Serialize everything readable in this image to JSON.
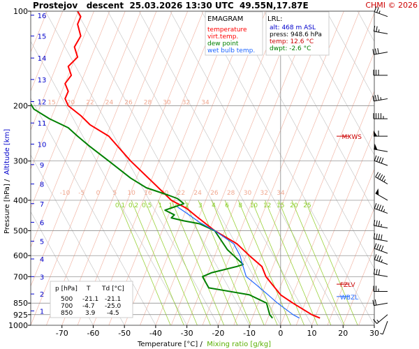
{
  "header": {
    "title": "Prostejov   descent  25.03.2026 13:30 UTC  49.55N,17.87E",
    "brand": "CHMI © 2026"
  },
  "legend": {
    "title": "EMAGRAM",
    "items": [
      {
        "label": "temperature",
        "color": "#ff0000"
      },
      {
        "label": "virt.temp.",
        "color": "#ff0000"
      },
      {
        "label": "dew point",
        "color": "#008000"
      },
      {
        "label": "wet bulb temp.",
        "color": "#1e66ff"
      }
    ]
  },
  "lrl": {
    "title": "LRL:",
    "alt": "alt: 468 m ASL",
    "press": "press: 948.6 hPa",
    "temp": "temp: 12.6 °C",
    "dwpt": "dwpt: -2.6 °C"
  },
  "table": {
    "headers": [
      "p [hPa]",
      "T",
      "Td [°C]"
    ],
    "rows": [
      [
        "500",
        "-21.1",
        "-21.1"
      ],
      [
        "700",
        "-4.7",
        "-25.0"
      ],
      [
        "850",
        "3.9",
        "-4.5"
      ]
    ]
  },
  "levels": {
    "mxws": "MXWS",
    "fzlv": "FZLV",
    "wbzl": "WBZL",
    "mxws_p": 250,
    "fzlv_p": 740,
    "wbzl_p": 810
  },
  "colors": {
    "temperature": "#ff0000",
    "dew_point": "#008000",
    "wet_bulb": "#1e66ff",
    "isotherm": "#f2b8a8",
    "dry_adiabat": "#c0c0c0",
    "mixing_ratio": "#9bd23c",
    "grid": "#808080",
    "altitude_label": "#0000cc",
    "isotherm_label": "#f0a890",
    "mixing_label": "#8ccf2a"
  },
  "chart_data": {
    "type": "line",
    "xlabel": "Temperature [°C]",
    "xlabel_sep": " /  ",
    "xlabel2": "Mixing ratio [g/kg]",
    "ylabel": "Pressure [hPa]",
    "ylabel_sep": " /  ",
    "ylabel2": "Altitude [km]",
    "x_scale": "linear",
    "y_scale": "log",
    "xlim": [
      -80,
      30
    ],
    "ylim": [
      1000,
      100
    ],
    "x_ticks": [
      -70,
      -60,
      -50,
      -40,
      -30,
      -20,
      -10,
      0,
      10,
      20,
      30
    ],
    "y_ticks": [
      100,
      200,
      300,
      400,
      500,
      600,
      700,
      850,
      925,
      1000
    ],
    "altitude_ticks": [
      {
        "km": "1",
        "p": 900
      },
      {
        "km": "2",
        "p": 795
      },
      {
        "km": "3",
        "p": 700
      },
      {
        "km": "4",
        "p": 615
      },
      {
        "km": "5",
        "p": 540
      },
      {
        "km": "6",
        "p": 470
      },
      {
        "km": "7",
        "p": 410
      },
      {
        "km": "8",
        "p": 355
      },
      {
        "km": "9",
        "p": 308
      },
      {
        "km": "10",
        "p": 265
      },
      {
        "km": "11",
        "p": 227
      },
      {
        "km": "12",
        "p": 194
      },
      {
        "km": "13",
        "p": 165
      },
      {
        "km": "14",
        "p": 141
      },
      {
        "km": "15",
        "p": 120
      },
      {
        "km": "16",
        "p": 103
      }
    ],
    "isotherm_labels_upper": {
      "p": 195,
      "values": [
        "15",
        "20",
        "22",
        "24",
        "26",
        "28",
        "30",
        "32",
        "34"
      ]
    },
    "isotherm_labels_lower": {
      "p": 378,
      "values": [
        "-10",
        "-5",
        "0",
        "5",
        "10",
        "16",
        "20",
        "22",
        "24",
        "26",
        "28",
        "30",
        "32",
        "34"
      ]
    },
    "mixing_ratio_labels": {
      "p": 415,
      "values": [
        "0.1",
        "0.2",
        "0.5",
        "1",
        "1.4",
        "2",
        "3",
        "4",
        "6",
        "8",
        "10",
        "12",
        "15",
        "20",
        "25"
      ]
    },
    "mixing_ratio_lines": [
      0.1,
      0.2,
      0.5,
      1,
      1.4,
      2,
      3,
      4,
      6,
      8,
      10,
      12,
      15,
      20,
      25
    ],
    "series": [
      {
        "name": "temperature",
        "color": "#ff0000",
        "points": [
          [
            12.6,
            948.6
          ],
          [
            10,
            925
          ],
          [
            3.9,
            850
          ],
          [
            0,
            800
          ],
          [
            -4.7,
            700
          ],
          [
            -6,
            650
          ],
          [
            -10,
            600
          ],
          [
            -14,
            550
          ],
          [
            -21.1,
            500
          ],
          [
            -27,
            450
          ],
          [
            -30,
            425
          ],
          [
            -35,
            400
          ],
          [
            -41,
            350
          ],
          [
            -48,
            300
          ],
          [
            -55,
            250
          ],
          [
            -61,
            230
          ],
          [
            -64,
            215
          ],
          [
            -68,
            200
          ],
          [
            -69,
            190
          ],
          [
            -68,
            180
          ],
          [
            -69,
            170
          ],
          [
            -67,
            160
          ],
          [
            -68,
            150
          ],
          [
            -65,
            140
          ],
          [
            -66,
            130
          ],
          [
            -64,
            120
          ],
          [
            -65,
            110
          ],
          [
            -64,
            104
          ],
          [
            -65,
            100
          ]
        ]
      },
      {
        "name": "dew point",
        "color": "#008000",
        "points": [
          [
            -2.6,
            948.6
          ],
          [
            -3.5,
            925
          ],
          [
            -4.5,
            850
          ],
          [
            -10,
            800
          ],
          [
            -18,
            775
          ],
          [
            -23,
            760
          ],
          [
            -25.0,
            700
          ],
          [
            -22,
            680
          ],
          [
            -14,
            650
          ],
          [
            -12,
            640
          ],
          [
            -15,
            600
          ],
          [
            -17,
            575
          ],
          [
            -21.1,
            500
          ],
          [
            -26,
            475
          ],
          [
            -31,
            465
          ],
          [
            -35,
            455
          ],
          [
            -34,
            445
          ],
          [
            -37,
            430
          ],
          [
            -34,
            420
          ],
          [
            -31,
            410
          ],
          [
            -33,
            395
          ],
          [
            -36,
            385
          ],
          [
            -43,
            365
          ],
          [
            -48,
            340
          ],
          [
            -55,
            300
          ],
          [
            -61,
            270
          ],
          [
            -65,
            250
          ],
          [
            -68,
            235
          ],
          [
            -74,
            220
          ],
          [
            -79,
            205
          ],
          [
            -81,
            190
          ]
        ]
      },
      {
        "name": "wet bulb temp.",
        "color": "#1e66ff",
        "points": [
          [
            6,
            948.6
          ],
          [
            4,
            925
          ],
          [
            -1,
            850
          ],
          [
            -4,
            800
          ],
          [
            -8,
            740
          ],
          [
            -11,
            700
          ],
          [
            -12,
            650
          ],
          [
            -13,
            600
          ],
          [
            -15,
            550
          ],
          [
            -21.1,
            500
          ],
          [
            -26,
            470
          ],
          [
            -30,
            440
          ],
          [
            -33,
            420
          ]
        ]
      }
    ]
  },
  "winds": [
    {
      "p": 970,
      "dir": 200,
      "spd": 5
    },
    {
      "p": 925,
      "dir": 230,
      "spd": 15
    },
    {
      "p": 850,
      "dir": 260,
      "spd": 20
    },
    {
      "p": 780,
      "dir": 270,
      "spd": 25
    },
    {
      "p": 700,
      "dir": 280,
      "spd": 30
    },
    {
      "p": 640,
      "dir": 290,
      "spd": 35
    },
    {
      "p": 590,
      "dir": 290,
      "spd": 40
    },
    {
      "p": 540,
      "dir": 280,
      "spd": 40
    },
    {
      "p": 490,
      "dir": 280,
      "spd": 35
    },
    {
      "p": 440,
      "dir": 290,
      "spd": 45
    },
    {
      "p": 400,
      "dir": 300,
      "spd": 50
    },
    {
      "p": 355,
      "dir": 300,
      "spd": 45
    },
    {
      "p": 310,
      "dir": 290,
      "spd": 40
    },
    {
      "p": 280,
      "dir": 280,
      "spd": 50
    },
    {
      "p": 250,
      "dir": 270,
      "spd": 60
    },
    {
      "p": 220,
      "dir": 270,
      "spd": 45
    },
    {
      "p": 190,
      "dir": 260,
      "spd": 35
    },
    {
      "p": 160,
      "dir": 270,
      "spd": 30
    },
    {
      "p": 135,
      "dir": 260,
      "spd": 30
    },
    {
      "p": 118,
      "dir": 280,
      "spd": 25
    },
    {
      "p": 104,
      "dir": 290,
      "spd": 25
    }
  ]
}
